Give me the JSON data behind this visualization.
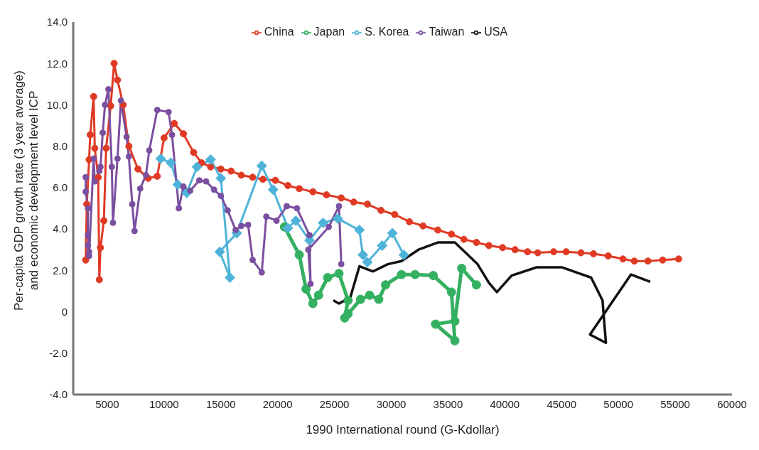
{
  "chart_data": {
    "type": "line",
    "xlabel": "1990 International round (G-Kdollar)",
    "ylabel": "Per-capita GDP growth rate (3 year average) and economic development level ICP",
    "xlim": [
      2000,
      60000
    ],
    "xticks": [
      5000,
      10000,
      15000,
      20000,
      25000,
      30000,
      35000,
      40000,
      45000,
      50000,
      55000,
      60000
    ],
    "ylim": [
      -4,
      14
    ],
    "yticks": [
      {
        "value": -4,
        "label": "-4.0"
      },
      {
        "value": -2,
        "label": "-2.0"
      },
      0,
      {
        "value": 2,
        "label": "2.0"
      },
      {
        "value": 4,
        "label": "4.0"
      },
      {
        "value": 6,
        "label": "6.0"
      },
      {
        "value": 8,
        "label": "8.0"
      },
      {
        "value": 10,
        "label": "10.0"
      },
      {
        "value": 12,
        "label": "12.0"
      },
      {
        "value": 14,
        "label": "14.0"
      }
    ],
    "grid": false,
    "legend": "top",
    "series": [
      {
        "name": "China",
        "color": "#e03a24",
        "marker": "circle",
        "x": [
          3100,
          3200,
          3400,
          3500,
          3800,
          3900,
          4200,
          4300,
          4400,
          4700,
          4900,
          5300,
          5600,
          5900,
          6400,
          6900,
          7700,
          8600,
          9400,
          10000,
          10900,
          11700,
          12600,
          13300,
          14100,
          15000,
          15900,
          16800,
          17800,
          18700,
          19800,
          20900,
          21900,
          23100,
          24300,
          25600,
          26700,
          27900,
          29100,
          30300,
          31600,
          32800,
          34100,
          35300,
          36400,
          37500,
          38600,
          39800,
          40900,
          42000,
          42900,
          44300,
          45400,
          46700,
          47800,
          49100,
          50400,
          51400,
          52600,
          53900,
          55300
        ],
        "values": [
          2.5,
          5.2,
          7.35,
          8.55,
          10.4,
          7.9,
          6.5,
          1.55,
          3.1,
          4.4,
          7.9,
          9.95,
          12.0,
          11.2,
          10.0,
          8.0,
          6.9,
          6.45,
          6.55,
          8.4,
          9.1,
          8.6,
          7.7,
          7.2,
          7.0,
          6.9,
          6.8,
          6.6,
          6.5,
          6.4,
          6.35,
          6.1,
          5.95,
          5.8,
          5.65,
          5.5,
          5.3,
          5.2,
          4.9,
          4.7,
          4.35,
          4.15,
          3.95,
          3.75,
          3.5,
          3.35,
          3.2,
          3.1,
          3.0,
          2.9,
          2.85,
          2.9,
          2.9,
          2.85,
          2.8,
          2.7,
          2.55,
          2.45,
          2.45,
          2.5,
          2.55
        ]
      },
      {
        "name": "Japan",
        "color": "#34b061",
        "marker": "circle",
        "x": [
          20600,
          21900,
          22500,
          23100,
          23600,
          24400,
          25400,
          26200,
          25900,
          26200,
          27300,
          28100,
          28900,
          29500,
          30900,
          32100,
          33700,
          35300,
          35600,
          33900,
          35600,
          36200,
          37500
        ],
        "values": [
          4.1,
          2.75,
          1.1,
          0.4,
          0.8,
          1.65,
          1.85,
          0.55,
          -0.3,
          -0.1,
          0.6,
          0.8,
          0.6,
          1.3,
          1.8,
          1.8,
          1.75,
          0.95,
          -1.4,
          -0.6,
          -0.45,
          2.1,
          1.3
        ]
      },
      {
        "name": "S. Korea",
        "color": "#4fb3d9",
        "marker": "diamond",
        "x": [
          9700,
          10600,
          11200,
          12000,
          12900,
          14100,
          15000,
          15800,
          14900,
          16400,
          18600,
          19600,
          20900,
          21600,
          22800,
          24000,
          25300,
          27200,
          27500,
          27900,
          29200,
          30100,
          31100
        ],
        "values": [
          7.4,
          7.2,
          6.15,
          5.75,
          7.0,
          7.35,
          6.45,
          1.65,
          2.9,
          3.8,
          7.05,
          5.9,
          4.05,
          4.4,
          3.45,
          4.3,
          4.5,
          3.95,
          2.75,
          2.4,
          3.2,
          3.8,
          2.75
        ]
      },
      {
        "name": "Taiwan",
        "color": "#7b4fa0",
        "marker": "circle",
        "x": [
          3100,
          3100,
          3300,
          3300,
          3400,
          3300,
          3400,
          3800,
          3900,
          4300,
          4400,
          4600,
          4800,
          5100,
          5400,
          5500,
          5900,
          6200,
          6700,
          6900,
          7200,
          7400,
          7900,
          8400,
          8700,
          9400,
          10400,
          10700,
          11300,
          11700,
          12300,
          13100,
          13700,
          14400,
          15000,
          15600,
          16300,
          16800,
          17400,
          17800,
          18600,
          19000,
          19900,
          20800,
          21700,
          22800,
          22900,
          22700,
          24500,
          25400,
          25600
        ],
        "values": [
          6.5,
          5.8,
          5.0,
          3.7,
          2.9,
          3.2,
          2.7,
          7.4,
          6.3,
          6.8,
          7.0,
          8.65,
          10.0,
          10.75,
          7.0,
          4.3,
          7.4,
          10.2,
          8.45,
          7.5,
          5.2,
          3.9,
          5.95,
          6.6,
          7.8,
          9.75,
          9.65,
          8.55,
          5.0,
          6.05,
          5.85,
          6.35,
          6.3,
          5.9,
          5.6,
          4.9,
          3.95,
          4.15,
          4.2,
          2.5,
          1.9,
          4.6,
          4.4,
          5.1,
          5.0,
          3.7,
          1.35,
          3.0,
          4.1,
          5.1,
          2.3
        ]
      },
      {
        "name": "USA",
        "color": "#111111",
        "marker": "none",
        "x": [
          24900,
          25400,
          26400,
          27200,
          28400,
          29700,
          30900,
          32400,
          34100,
          35600,
          37600,
          38600,
          39300,
          40600,
          42800,
          45000,
          47600,
          48600,
          48900,
          47500,
          51100,
          52800
        ],
        "values": [
          0.55,
          0.4,
          0.7,
          2.2,
          1.95,
          2.3,
          2.45,
          3.0,
          3.35,
          3.35,
          2.3,
          1.4,
          0.95,
          1.75,
          2.15,
          2.15,
          1.65,
          0.55,
          -1.5,
          -1.1,
          1.8,
          1.45
        ]
      }
    ]
  }
}
